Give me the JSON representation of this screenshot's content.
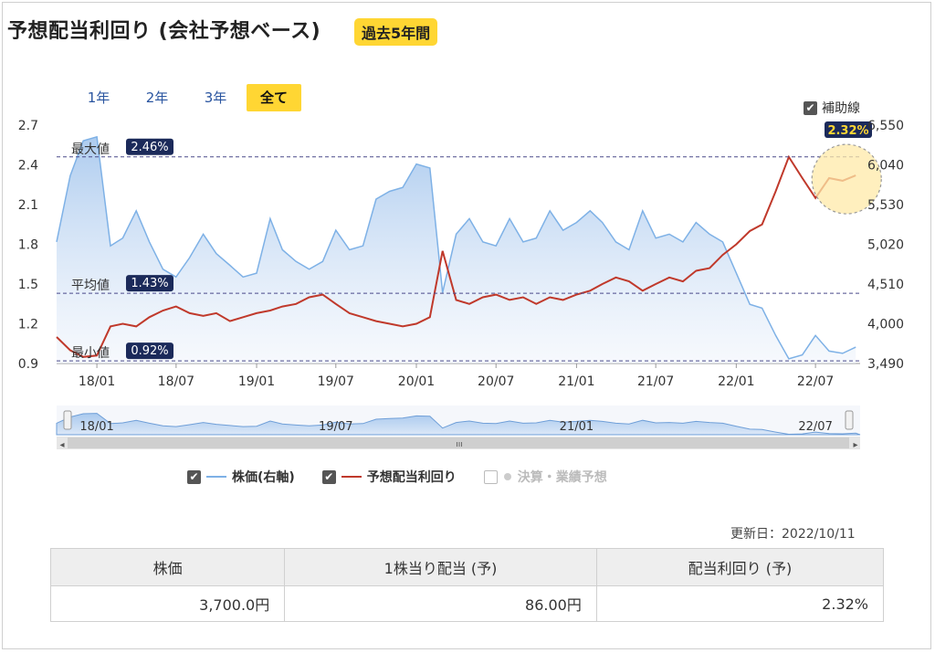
{
  "header": {
    "title": "予想配当利回り (会社予想ベース)",
    "period_badge": "過去5年間"
  },
  "range_buttons": [
    "1年",
    "2年",
    "3年",
    "全て"
  ],
  "active_range": "全て",
  "guide_toggle": {
    "label": "補助線",
    "checked": true,
    "check_mark": "✔"
  },
  "reference_lines": {
    "max": {
      "label": "最大値",
      "value": "2.46%"
    },
    "avg": {
      "label": "平均値",
      "value": "1.43%"
    },
    "min": {
      "label": "最小値",
      "value": "0.92%"
    }
  },
  "current_yield_badge": "2.32%",
  "legend": [
    {
      "label": "株価(右軸)",
      "checked": true,
      "color": "#7eb1e6"
    },
    {
      "label": "予想配当利回り",
      "checked": true,
      "color": "#c0392b"
    },
    {
      "label": "決算・業績予想",
      "checked": false,
      "color": "#cccccc"
    }
  ],
  "navigator_labels": [
    "18/01",
    "19/07",
    "21/01",
    "22/07"
  ],
  "navigator_handle_glyph": "ııı",
  "navigator_left_arrow": "◂",
  "navigator_right_arrow": "▸",
  "updated": "更新日：2022/10/11",
  "summary_table": {
    "headers": [
      "株価",
      "1株当り配当 (予)",
      "配当利回り (予)"
    ],
    "values": [
      "3,700.0円",
      "86.00円",
      "2.32%"
    ]
  },
  "chart_data": {
    "type": "line",
    "x_ticks": [
      "18/01",
      "18/07",
      "19/01",
      "19/07",
      "20/01",
      "20/07",
      "21/01",
      "21/07",
      "22/01",
      "22/07"
    ],
    "y_left_ticks": [
      "2.7",
      "2.4",
      "2.1",
      "1.8",
      "1.5",
      "1.2",
      "0.9"
    ],
    "y_right_ticks": [
      "6,550",
      "6,040",
      "5,530",
      "5,020",
      "4,510",
      "4,000",
      "3,490"
    ],
    "y_left_range": [
      0.9,
      2.7
    ],
    "y_right_range": [
      3490,
      6550
    ],
    "grid": false,
    "series": [
      {
        "name": "株価(右軸)",
        "axis": "right",
        "color": "#7eb1e6",
        "x": [
          "2017-10",
          "2017-11",
          "2017-12",
          "2018-01",
          "2018-02",
          "2018-03",
          "2018-04",
          "2018-05",
          "2018-06",
          "2018-07",
          "2018-08",
          "2018-09",
          "2018-10",
          "2018-11",
          "2018-12",
          "2019-01",
          "2019-02",
          "2019-03",
          "2019-04",
          "2019-05",
          "2019-06",
          "2019-07",
          "2019-08",
          "2019-09",
          "2019-10",
          "2019-11",
          "2019-12",
          "2020-01",
          "2020-02",
          "2020-03",
          "2020-04",
          "2020-05",
          "2020-06",
          "2020-07",
          "2020-08",
          "2020-09",
          "2020-10",
          "2020-11",
          "2020-12",
          "2021-01",
          "2021-02",
          "2021-03",
          "2021-04",
          "2021-05",
          "2021-06",
          "2021-07",
          "2021-08",
          "2021-09",
          "2021-10",
          "2021-11",
          "2021-12",
          "2022-01",
          "2022-02",
          "2022-03",
          "2022-04",
          "2022-05",
          "2022-06",
          "2022-07",
          "2022-08",
          "2022-09",
          "2022-10"
        ],
        "y": [
          5050,
          5900,
          6350,
          6400,
          5000,
          5100,
          5450,
          5050,
          4700,
          4600,
          4850,
          5150,
          4900,
          4750,
          4600,
          4650,
          5350,
          4950,
          4800,
          4700,
          4800,
          5200,
          4950,
          5000,
          5600,
          5700,
          5750,
          6050,
          6000,
          4400,
          5150,
          5350,
          5050,
          5000,
          5350,
          5050,
          5100,
          5450,
          5200,
          5300,
          5450,
          5300,
          5050,
          4950,
          5450,
          5100,
          5150,
          5050,
          5300,
          5150,
          5050,
          4650,
          4250,
          4200,
          3850,
          3550,
          3600,
          3850,
          3650,
          3620,
          3700
        ]
      },
      {
        "name": "予想配当利回り",
        "axis": "left",
        "color": "#c0392b",
        "x": [
          "2017-10",
          "2017-11",
          "2017-12",
          "2018-01",
          "2018-02",
          "2018-03",
          "2018-04",
          "2018-05",
          "2018-06",
          "2018-07",
          "2018-08",
          "2018-09",
          "2018-10",
          "2018-11",
          "2018-12",
          "2019-01",
          "2019-02",
          "2019-03",
          "2019-04",
          "2019-05",
          "2019-06",
          "2019-07",
          "2019-08",
          "2019-09",
          "2019-10",
          "2019-11",
          "2019-12",
          "2020-01",
          "2020-02",
          "2020-03",
          "2020-04",
          "2020-05",
          "2020-06",
          "2020-07",
          "2020-08",
          "2020-09",
          "2020-10",
          "2020-11",
          "2020-12",
          "2021-01",
          "2021-02",
          "2021-03",
          "2021-04",
          "2021-05",
          "2021-06",
          "2021-07",
          "2021-08",
          "2021-09",
          "2021-10",
          "2021-11",
          "2021-12",
          "2022-01",
          "2022-02",
          "2022-03",
          "2022-04",
          "2022-05",
          "2022-06",
          "2022-07",
          "2022-08",
          "2022-09",
          "2022-10"
        ],
        "y": [
          1.1,
          1.0,
          0.95,
          0.96,
          1.18,
          1.2,
          1.18,
          1.25,
          1.3,
          1.33,
          1.28,
          1.26,
          1.28,
          1.22,
          1.25,
          1.28,
          1.3,
          1.33,
          1.35,
          1.4,
          1.42,
          1.35,
          1.28,
          1.25,
          1.22,
          1.2,
          1.18,
          1.2,
          1.25,
          1.75,
          1.38,
          1.35,
          1.4,
          1.42,
          1.38,
          1.4,
          1.35,
          1.4,
          1.38,
          1.42,
          1.45,
          1.5,
          1.55,
          1.52,
          1.45,
          1.5,
          1.55,
          1.52,
          1.6,
          1.62,
          1.72,
          1.8,
          1.9,
          1.95,
          2.2,
          2.46,
          2.3,
          2.15,
          2.3,
          2.28,
          2.32
        ]
      }
    ]
  }
}
